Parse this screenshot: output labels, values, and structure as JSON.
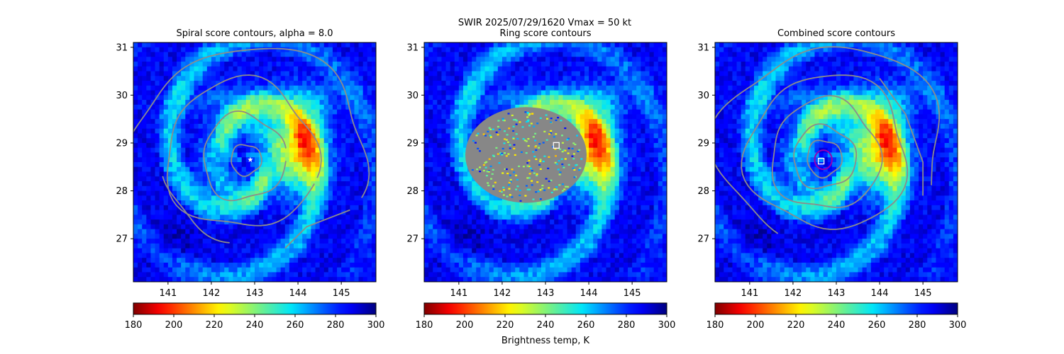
{
  "figure": {
    "suptitle": "SWIR  2025/07/29/1620    Vmax = 50 kt",
    "colorbar_label": "Brightness temp, K"
  },
  "chart_data": [
    {
      "type": "heatmap",
      "title": "Spiral score contours, alpha =  8.0",
      "xlim": [
        140.2,
        145.8
      ],
      "ylim": [
        26.1,
        31.1
      ],
      "xticks": [
        141,
        142,
        143,
        144,
        145
      ],
      "yticks": [
        27,
        28,
        29,
        30,
        31
      ],
      "colormap": "jet_r",
      "colorbar": {
        "range": [
          180,
          300
        ],
        "ticks": [
          180,
          200,
          220,
          240,
          260,
          280,
          300
        ]
      },
      "contour_color": "#8c8c8c",
      "marker": {
        "type": "star",
        "x": 142.9,
        "y": 28.65,
        "color": "#ffffff"
      }
    },
    {
      "type": "heatmap",
      "title": "Ring score contours",
      "xlim": [
        140.2,
        145.8
      ],
      "ylim": [
        26.1,
        31.1
      ],
      "xticks": [
        141,
        142,
        143,
        144,
        145
      ],
      "yticks": [
        27,
        28,
        29,
        30,
        31
      ],
      "colormap": "jet_r",
      "colorbar": {
        "range": [
          180,
          300
        ],
        "ticks": [
          180,
          200,
          220,
          240,
          260,
          280,
          300
        ]
      },
      "contour_color": "#8c8c8c",
      "marker": {
        "type": "square",
        "x": 143.25,
        "y": 28.95,
        "color": "#ffffff"
      }
    },
    {
      "type": "heatmap",
      "title": "Combined score contours",
      "xlim": [
        140.2,
        145.8
      ],
      "ylim": [
        26.1,
        31.1
      ],
      "xticks": [
        141,
        142,
        143,
        144,
        145
      ],
      "yticks": [
        27,
        28,
        29,
        30,
        31
      ],
      "colormap": "jet_r",
      "colorbar": {
        "range": [
          180,
          300
        ],
        "ticks": [
          180,
          200,
          220,
          240,
          260,
          280,
          300
        ]
      },
      "contour_color": "#8c8c8c",
      "marker": {
        "type": "square",
        "x": 142.65,
        "y": 28.62,
        "color": "#ffffff"
      },
      "center_circle": {
        "x": 142.7,
        "y": 28.65,
        "radius_deg": 0.2,
        "color": "#9400b4"
      }
    }
  ]
}
